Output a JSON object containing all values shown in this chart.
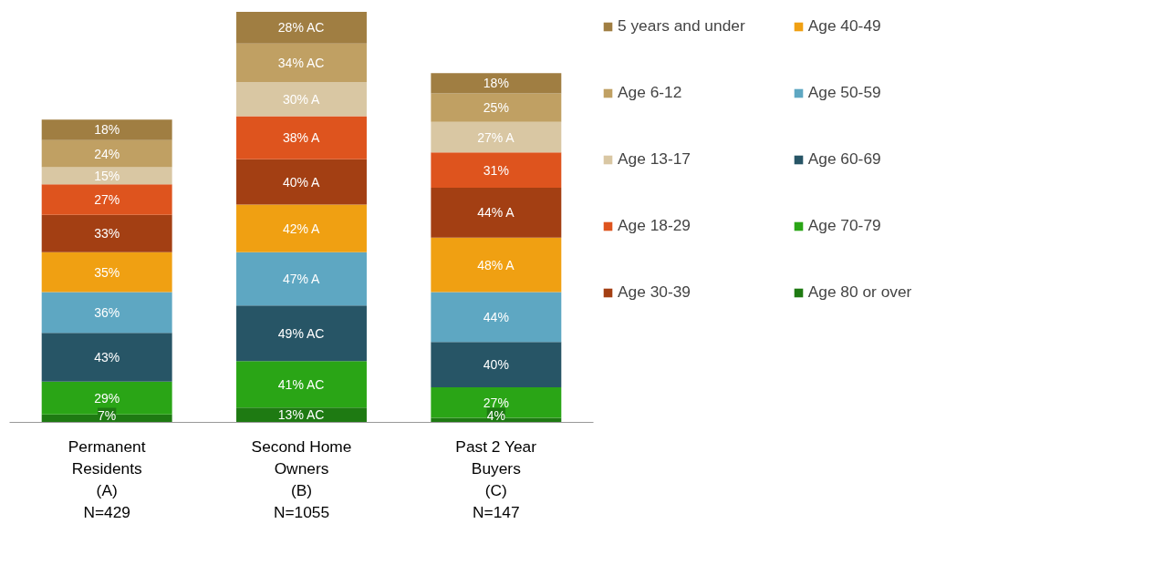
{
  "chart_data": {
    "type": "bar",
    "stacked": true,
    "categories": [
      "Permanent\nResidents\n(A)\nN=429",
      "Second Home\nOwners\n(B)\nN=1055",
      "Past 2 Year\nBuyers\n(C)\nN=147"
    ],
    "series": [
      {
        "name": "Age 80 or over",
        "color": "#1e7a12",
        "values": [
          7,
          13,
          4
        ],
        "value_labels": [
          "7%",
          "13% AC",
          "4%"
        ]
      },
      {
        "name": "Age 70-79",
        "color": "#2aa516",
        "values": [
          29,
          41,
          27
        ],
        "value_labels": [
          "29%",
          "41% AC",
          "27%"
        ]
      },
      {
        "name": "Age 60-69",
        "color": "#275566",
        "values": [
          43,
          49,
          40
        ],
        "value_labels": [
          "43%",
          "49% AC",
          "40%"
        ]
      },
      {
        "name": "Age 50-59",
        "color": "#5ea7c2",
        "values": [
          36,
          47,
          44
        ],
        "value_labels": [
          "36%",
          "47% A",
          "44%"
        ]
      },
      {
        "name": "Age 40-49",
        "color": "#f0a012",
        "values": [
          35,
          42,
          48
        ],
        "value_labels": [
          "35%",
          "42% A",
          "48% A"
        ]
      },
      {
        "name": "Age 30-39",
        "color": "#a33f13",
        "values": [
          33,
          40,
          44
        ],
        "value_labels": [
          "33%",
          "40% A",
          "44% A"
        ]
      },
      {
        "name": "Age 18-29",
        "color": "#de541e",
        "values": [
          27,
          38,
          31
        ],
        "value_labels": [
          "27%",
          "38% A",
          "31%"
        ]
      },
      {
        "name": "Age 13-17",
        "color": "#d9c7a3",
        "values": [
          15,
          30,
          27
        ],
        "value_labels": [
          "15%",
          "30% A",
          "27% A"
        ]
      },
      {
        "name": "Age 6-12",
        "color": "#c0a063",
        "values": [
          24,
          34,
          25
        ],
        "value_labels": [
          "24%",
          "34% AC",
          "25%"
        ]
      },
      {
        "name": "5 years and under",
        "color": "#a07e42",
        "values": [
          18,
          28,
          18
        ],
        "value_labels": [
          "18%",
          "28% AC",
          "18%"
        ]
      }
    ],
    "legend": "right",
    "grid": false
  }
}
